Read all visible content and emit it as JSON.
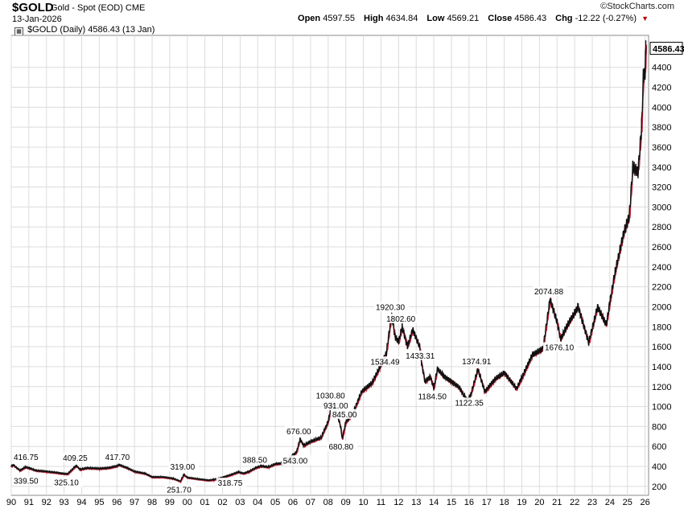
{
  "header": {
    "symbol": "$GOLD",
    "name": "Gold - Spot (EOD)",
    "exchange": "CME",
    "date": "13-Jan-2026",
    "logo": "©StockCharts.com",
    "open_label": "Open",
    "open_value": "4597.55",
    "high_label": "High",
    "high_value": "4634.84",
    "low_label": "Low",
    "low_value": "4569.21",
    "close_label": "Close",
    "close_value": "4586.43",
    "chg_label": "Chg",
    "chg_value": "-12.22 (-0.27%)",
    "down_icon": "triangle-down-icon",
    "down_color": "#c00000"
  },
  "legend": {
    "icon": "chart-style-icon",
    "text": "$GOLD (Daily) 4586.43 (13 Jan)"
  },
  "chart_data": {
    "type": "line",
    "title": "$GOLD Gold - Spot (EOD)",
    "xlabel": "",
    "ylabel": "",
    "ylim": [
      110,
      4720
    ],
    "xlim": [
      1990.0,
      2026.2
    ],
    "grid": true,
    "y_ticks": [
      200,
      400,
      600,
      800,
      1000,
      1200,
      1400,
      1600,
      1800,
      2000,
      2200,
      2400,
      2600,
      2800,
      3000,
      3200,
      3400,
      3600,
      3800,
      4000,
      4200,
      4400
    ],
    "x_ticks": [
      {
        "year": 1990,
        "label": "90"
      },
      {
        "year": 1991,
        "label": "91"
      },
      {
        "year": 1992,
        "label": "92"
      },
      {
        "year": 1993,
        "label": "93"
      },
      {
        "year": 1994,
        "label": "94"
      },
      {
        "year": 1995,
        "label": "95"
      },
      {
        "year": 1996,
        "label": "96"
      },
      {
        "year": 1997,
        "label": "97"
      },
      {
        "year": 1998,
        "label": "98"
      },
      {
        "year": 1999,
        "label": "99"
      },
      {
        "year": 2000,
        "label": "00"
      },
      {
        "year": 2001,
        "label": "01"
      },
      {
        "year": 2002,
        "label": "02"
      },
      {
        "year": 2003,
        "label": "03"
      },
      {
        "year": 2004,
        "label": "04"
      },
      {
        "year": 2005,
        "label": "05"
      },
      {
        "year": 2006,
        "label": "06"
      },
      {
        "year": 2007,
        "label": "07"
      },
      {
        "year": 2008,
        "label": "08"
      },
      {
        "year": 2009,
        "label": "09"
      },
      {
        "year": 2010,
        "label": "10"
      },
      {
        "year": 2011,
        "label": "11"
      },
      {
        "year": 2012,
        "label": "12"
      },
      {
        "year": 2013,
        "label": "13"
      },
      {
        "year": 2014,
        "label": "14"
      },
      {
        "year": 2015,
        "label": "15"
      },
      {
        "year": 2016,
        "label": "16"
      },
      {
        "year": 2017,
        "label": "17"
      },
      {
        "year": 2018,
        "label": "18"
      },
      {
        "year": 2019,
        "label": "19"
      },
      {
        "year": 2020,
        "label": "20"
      },
      {
        "year": 2021,
        "label": "21"
      },
      {
        "year": 2022,
        "label": "22"
      },
      {
        "year": 2023,
        "label": "23"
      },
      {
        "year": 2024,
        "label": "24"
      },
      {
        "year": 2025,
        "label": "25"
      },
      {
        "year": 2026,
        "label": "26"
      }
    ],
    "series": [
      {
        "name": "$GOLD (Daily)",
        "color": "#111111",
        "points": [
          [
            1990.0,
            400
          ],
          [
            1990.1,
            416.75
          ],
          [
            1990.5,
            360
          ],
          [
            1990.8,
            395
          ],
          [
            1991.0,
            385
          ],
          [
            1991.4,
            360
          ],
          [
            1992.0,
            350
          ],
          [
            1992.6,
            338
          ],
          [
            1992.8,
            332
          ],
          [
            1993.2,
            325.1
          ],
          [
            1993.6,
            395
          ],
          [
            1993.7,
            409.25
          ],
          [
            1993.9,
            370
          ],
          [
            1994.3,
            385
          ],
          [
            1995.0,
            380
          ],
          [
            1995.5,
            385
          ],
          [
            1996.0,
            405
          ],
          [
            1996.1,
            417.7
          ],
          [
            1996.6,
            385
          ],
          [
            1997.0,
            350
          ],
          [
            1997.6,
            330
          ],
          [
            1998.0,
            295
          ],
          [
            1998.6,
            295
          ],
          [
            1999.2,
            280
          ],
          [
            1999.6,
            251.7
          ],
          [
            1999.8,
            319
          ],
          [
            2000.0,
            290
          ],
          [
            2000.6,
            275
          ],
          [
            2001.2,
            262
          ],
          [
            2001.5,
            268
          ],
          [
            2002.0,
            290
          ],
          [
            2002.5,
            318.75
          ],
          [
            2002.9,
            345
          ],
          [
            2003.2,
            330
          ],
          [
            2003.5,
            350
          ],
          [
            2003.9,
            388.5
          ],
          [
            2004.2,
            405
          ],
          [
            2004.6,
            395
          ],
          [
            2005.0,
            425
          ],
          [
            2005.5,
            435
          ],
          [
            2005.9,
            500
          ],
          [
            2006.2,
            543
          ],
          [
            2006.4,
            676
          ],
          [
            2006.6,
            610
          ],
          [
            2007.0,
            650
          ],
          [
            2007.6,
            690
          ],
          [
            2008.0,
            850
          ],
          [
            2008.2,
            1030.8
          ],
          [
            2008.5,
            931
          ],
          [
            2008.7,
            800
          ],
          [
            2008.8,
            680.8
          ],
          [
            2009.0,
            845
          ],
          [
            2009.4,
            930
          ],
          [
            2009.9,
            1150
          ],
          [
            2010.5,
            1240
          ],
          [
            2011.0,
            1420
          ],
          [
            2011.3,
            1534.49
          ],
          [
            2011.6,
            1920.3
          ],
          [
            2011.8,
            1700
          ],
          [
            2012.0,
            1650
          ],
          [
            2012.2,
            1802.6
          ],
          [
            2012.5,
            1600
          ],
          [
            2012.8,
            1770
          ],
          [
            2013.2,
            1600
          ],
          [
            2013.3,
            1433.31
          ],
          [
            2013.5,
            1250
          ],
          [
            2013.8,
            1300
          ],
          [
            2014.0,
            1184.5
          ],
          [
            2014.2,
            1380
          ],
          [
            2014.6,
            1300
          ],
          [
            2015.0,
            1250
          ],
          [
            2015.4,
            1200
          ],
          [
            2015.9,
            1060
          ],
          [
            2016.1,
            1122.35
          ],
          [
            2016.5,
            1374.91
          ],
          [
            2016.9,
            1150
          ],
          [
            2017.5,
            1280
          ],
          [
            2018.0,
            1340
          ],
          [
            2018.7,
            1180
          ],
          [
            2019.0,
            1290
          ],
          [
            2019.6,
            1520
          ],
          [
            2020.2,
            1580
          ],
          [
            2020.6,
            2074.88
          ],
          [
            2021.0,
            1850
          ],
          [
            2021.2,
            1676.1
          ],
          [
            2021.6,
            1820
          ],
          [
            2022.2,
            2000
          ],
          [
            2022.8,
            1640
          ],
          [
            2023.3,
            2000
          ],
          [
            2023.8,
            1820
          ],
          [
            2024.0,
            2050
          ],
          [
            2024.3,
            2350
          ],
          [
            2024.8,
            2750
          ],
          [
            2025.1,
            2900
          ],
          [
            2025.3,
            3400
          ],
          [
            2025.6,
            3350
          ],
          [
            2025.8,
            3800
          ],
          [
            2025.9,
            4300
          ],
          [
            2026.0,
            4350
          ],
          [
            2026.04,
            4600
          ],
          [
            2026.05,
            4586.43
          ]
        ]
      }
    ],
    "annotations": [
      {
        "x": 1990.0,
        "y": 416.75,
        "text": "416.75",
        "pos": "above"
      },
      {
        "x": 1990.0,
        "y": 339.5,
        "text": "339.50",
        "pos": "below"
      },
      {
        "x": 1993.7,
        "y": 409.25,
        "text": "409.25",
        "pos": "above"
      },
      {
        "x": 1993.2,
        "y": 325.1,
        "text": "325.10",
        "pos": "below"
      },
      {
        "x": 1996.1,
        "y": 417.7,
        "text": "417.70",
        "pos": "above"
      },
      {
        "x": 1999.6,
        "y": 251.7,
        "text": "251.70",
        "pos": "below"
      },
      {
        "x": 1999.8,
        "y": 319.0,
        "text": "319.00",
        "pos": "above"
      },
      {
        "x": 2002.5,
        "y": 318.75,
        "text": "318.75",
        "pos": "below"
      },
      {
        "x": 2003.9,
        "y": 388.5,
        "text": "388.50",
        "pos": "above"
      },
      {
        "x": 2006.2,
        "y": 543.0,
        "text": "543.00",
        "pos": "below"
      },
      {
        "x": 2006.4,
        "y": 676.0,
        "text": "676.00",
        "pos": "above"
      },
      {
        "x": 2008.2,
        "y": 1030.8,
        "text": "1030.80",
        "pos": "above"
      },
      {
        "x": 2008.5,
        "y": 931.0,
        "text": "931.00",
        "pos": "above"
      },
      {
        "x": 2009.0,
        "y": 845.0,
        "text": "845.00",
        "pos": "above"
      },
      {
        "x": 2008.8,
        "y": 680.8,
        "text": "680.80",
        "pos": "below"
      },
      {
        "x": 2011.6,
        "y": 1920.3,
        "text": "1920.30",
        "pos": "above"
      },
      {
        "x": 2012.2,
        "y": 1802.6,
        "text": "1802.60",
        "pos": "above"
      },
      {
        "x": 2011.3,
        "y": 1534.49,
        "text": "1534.49",
        "pos": "below"
      },
      {
        "x": 2013.3,
        "y": 1433.31,
        "text": "1433.31",
        "pos": "above"
      },
      {
        "x": 2014.0,
        "y": 1184.5,
        "text": "1184.50",
        "pos": "below"
      },
      {
        "x": 2016.5,
        "y": 1374.91,
        "text": "1374.91",
        "pos": "above"
      },
      {
        "x": 2016.1,
        "y": 1122.35,
        "text": "1122.35",
        "pos": "below"
      },
      {
        "x": 2020.6,
        "y": 2074.88,
        "text": "2074.88",
        "pos": "above"
      },
      {
        "x": 2021.2,
        "y": 1676.1,
        "text": "1676.10",
        "pos": "below"
      }
    ],
    "last_value_label": "4586.43"
  }
}
